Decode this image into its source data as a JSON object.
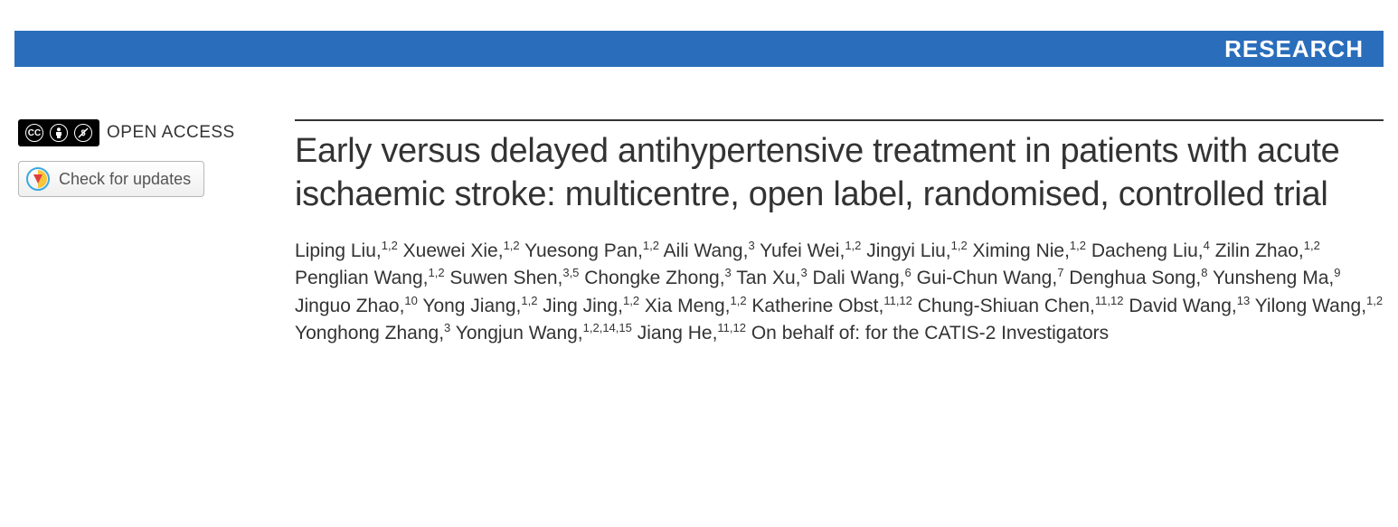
{
  "banner": {
    "label": "RESEARCH",
    "bg_color": "#2a6ebb",
    "text_color": "#ffffff"
  },
  "sidebar": {
    "open_access_label": "OPEN ACCESS",
    "cc_glyphs": [
      "cc",
      "by",
      "nc"
    ],
    "updates_button": "Check for updates"
  },
  "article": {
    "title": "Early versus delayed antihypertensive treatment in patients with acute ischaemic stroke: multicentre, open label, randomised, controlled trial",
    "authors": [
      {
        "name": "Liping Liu",
        "aff": "1,2"
      },
      {
        "name": "Xuewei Xie",
        "aff": "1,2"
      },
      {
        "name": "Yuesong Pan",
        "aff": "1,2"
      },
      {
        "name": "Aili Wang",
        "aff": "3"
      },
      {
        "name": "Yufei Wei",
        "aff": "1,2"
      },
      {
        "name": "Jingyi Liu",
        "aff": "1,2"
      },
      {
        "name": "Ximing Nie",
        "aff": "1,2"
      },
      {
        "name": "Dacheng Liu",
        "aff": "4"
      },
      {
        "name": "Zilin Zhao",
        "aff": "1,2"
      },
      {
        "name": "Penglian Wang",
        "aff": "1,2"
      },
      {
        "name": "Suwen Shen",
        "aff": "3,5"
      },
      {
        "name": "Chongke Zhong",
        "aff": "3"
      },
      {
        "name": "Tan Xu",
        "aff": "3"
      },
      {
        "name": "Dali Wang",
        "aff": "6"
      },
      {
        "name": "Gui-Chun Wang",
        "aff": "7"
      },
      {
        "name": "Denghua Song",
        "aff": "8"
      },
      {
        "name": "Yunsheng Ma",
        "aff": "9"
      },
      {
        "name": "Jinguo Zhao",
        "aff": "10"
      },
      {
        "name": "Yong Jiang",
        "aff": "1,2"
      },
      {
        "name": "Jing Jing",
        "aff": "1,2"
      },
      {
        "name": "Xia Meng",
        "aff": "1,2"
      },
      {
        "name": "Katherine Obst",
        "aff": "11,12"
      },
      {
        "name": "Chung-Shiuan Chen",
        "aff": "11,12"
      },
      {
        "name": "David Wang",
        "aff": "13"
      },
      {
        "name": "Yilong Wang",
        "aff": "1,2"
      },
      {
        "name": "Yonghong Zhang",
        "aff": "3"
      },
      {
        "name": "Yongjun Wang",
        "aff": "1,2,14,15"
      },
      {
        "name": "Jiang He",
        "aff": "11,12"
      }
    ],
    "behalf_text": "On behalf of: for the CATIS-2 Investigators"
  }
}
